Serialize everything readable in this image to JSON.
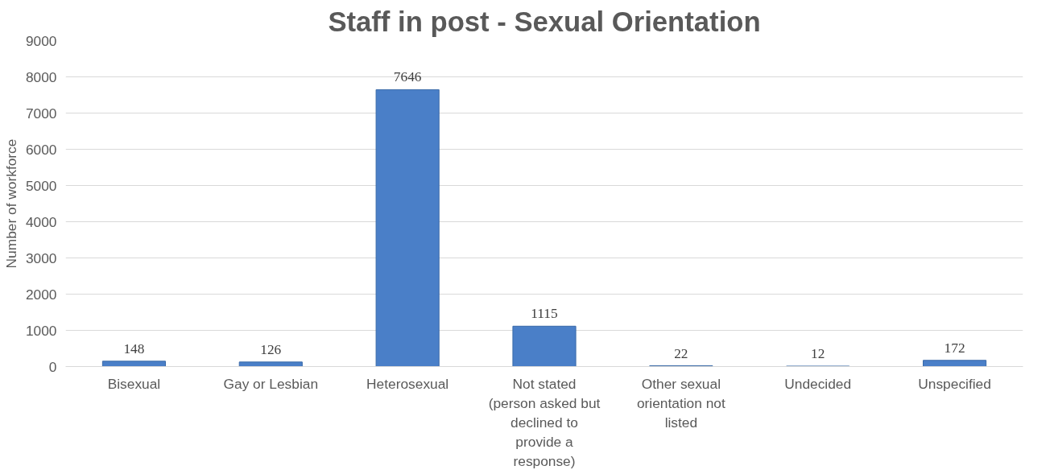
{
  "chart_data": {
    "type": "bar",
    "title": "Staff in post - Sexual Orientation",
    "ylabel": "Number of workforce",
    "categories": [
      "Bisexual",
      "Gay or Lesbian",
      "Heterosexual",
      "Not stated (person asked but declined to provide a response)",
      "Other sexual orientation not listed",
      "Undecided",
      "Unspecified"
    ],
    "values": [
      148,
      126,
      7646,
      1115,
      22,
      12,
      172
    ],
    "color": "#4a7fc8",
    "ylim": [
      0,
      9000
    ],
    "yticks": [
      0,
      1000,
      2000,
      3000,
      4000,
      5000,
      6000,
      7000,
      8000,
      9000
    ],
    "grid": "y",
    "data_labels": true
  }
}
